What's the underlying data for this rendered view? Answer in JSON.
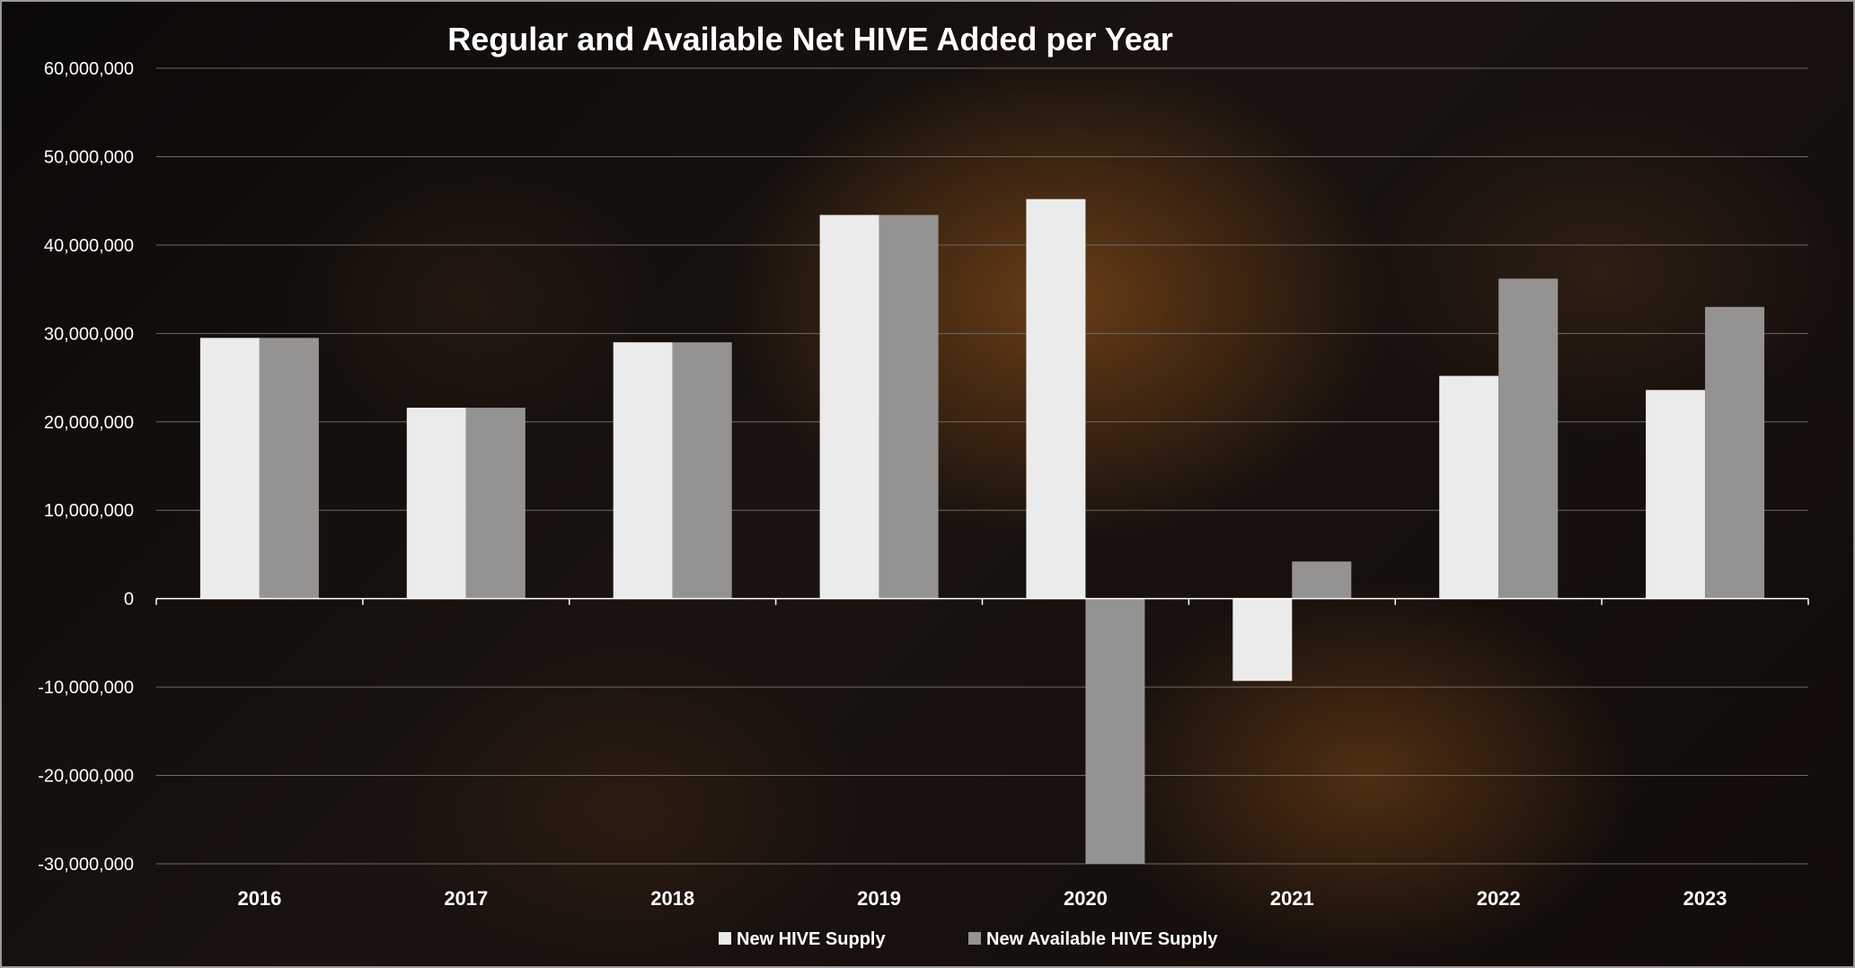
{
  "chart_data": {
    "type": "bar",
    "title": "Regular and Available Net HIVE  Added per Year",
    "xlabel": "",
    "ylabel": "",
    "categories": [
      "2016",
      "2017",
      "2018",
      "2019",
      "2020",
      "2021",
      "2022",
      "2023"
    ],
    "series": [
      {
        "name": "New HIVE Supply",
        "color": "#ebebeb",
        "values": [
          29500000,
          21600000,
          29000000,
          43400000,
          45200000,
          -9300000,
          25200000,
          23600000
        ]
      },
      {
        "name": "New Available HIVE Supply",
        "color": "#959392",
        "values": [
          29500000,
          21600000,
          29000000,
          43400000,
          -30000000,
          4200000,
          36200000,
          33000000
        ]
      }
    ],
    "ylim": [
      -30000000,
      60000000
    ],
    "yticks": [
      60000000,
      50000000,
      40000000,
      30000000,
      20000000,
      10000000,
      0,
      -10000000,
      -20000000,
      -30000000
    ],
    "ytick_labels": [
      "60,000,000",
      "50,000,000",
      "40,000,000",
      "30,000,000",
      "20,000,000",
      "10,000,000",
      "0",
      "-10,000,000",
      "-20,000,000",
      "-30,000,000"
    ],
    "grid": true,
    "legend_position": "bottom-center"
  }
}
